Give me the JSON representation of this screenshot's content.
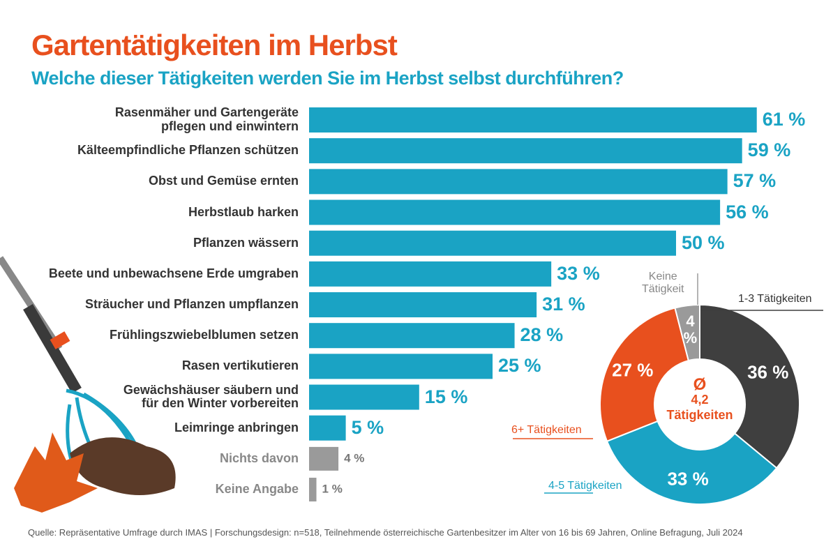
{
  "title": "Gartentätigkeiten im Herbst",
  "subtitle": "Welche dieser Tätigkeiten werden Sie im Herbst selbst durchführen?",
  "source": "Quelle: Repräsentative Umfrage durch IMAS | Forschungsdesign: n=518, Teilnehmende österreichische Gartenbesitzer im Alter von 16 bis 69 Jahren, Online Befragung, Juli 2024",
  "chart_data": [
    {
      "type": "hbar",
      "categories": [
        "Rasenmäher und Gartengeräte\npflegen und einwintern",
        "Kälteempfindliche Pflanzen schützen",
        "Obst und Gemüse ernten",
        "Herbstlaub harken",
        "Pflanzen wässern",
        "Beete und unbewachsene Erde umgraben",
        "Sträucher und Pflanzen umpflanzen",
        "Frühlingszwiebelblumen setzen",
        "Rasen vertikutieren",
        "Gewächshäuser säubern und\nfür den Winter vorbereiten",
        "Leimringe anbringen",
        "Nichts davon",
        "Keine Angabe"
      ],
      "values": [
        61,
        59,
        57,
        56,
        50,
        33,
        31,
        28,
        25,
        15,
        5,
        4,
        1
      ],
      "value_labels": [
        "61 %",
        "59 %",
        "57 %",
        "56 %",
        "50 %",
        "33 %",
        "31 %",
        "28 %",
        "25 %",
        "15 %",
        "5 %",
        "4 %",
        "1 %"
      ],
      "colors": [
        "#1aa3c4",
        "#1aa3c4",
        "#1aa3c4",
        "#1aa3c4",
        "#1aa3c4",
        "#1aa3c4",
        "#1aa3c4",
        "#1aa3c4",
        "#1aa3c4",
        "#1aa3c4",
        "#1aa3c4",
        "#9a9a9a",
        "#9a9a9a"
      ]
    },
    {
      "type": "donut",
      "categories": [
        "1-3 Tätigkeiten",
        "4-5 Tätigkeiten",
        "6+ Tätigkeiten",
        "Keine\nTätigkeit"
      ],
      "values": [
        36,
        33,
        27,
        4
      ],
      "value_labels": [
        "36 %",
        "33 %",
        "27 %",
        "4\n%"
      ],
      "colors": [
        "#3f3f3f",
        "#1aa3c4",
        "#e8501e",
        "#9a9a9a"
      ],
      "center_lines": [
        "Ø",
        "4,2",
        "Tätigkeiten"
      ]
    }
  ]
}
